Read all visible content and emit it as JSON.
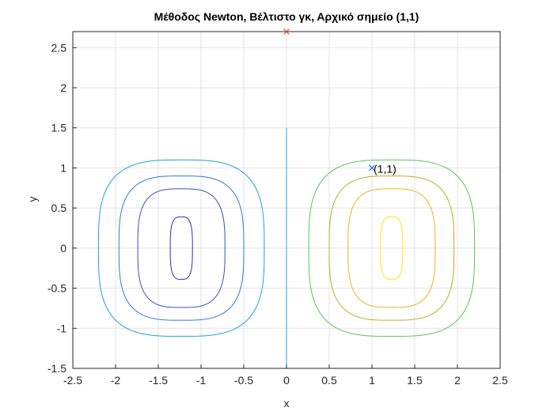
{
  "chart_data": {
    "type": "contour",
    "title": "Μέθοδος Newton, Βέλτιστο γκ, Αρχικό σημείο (1,1)",
    "xlabel": "x",
    "ylabel": "y",
    "xlim": [
      -2.5,
      2.5
    ],
    "ylim": [
      -1.5,
      2.7
    ],
    "xticks": [
      "-2.5",
      "-2",
      "-1.5",
      "-1",
      "-0.5",
      "0",
      "0.5",
      "1",
      "1.5",
      "2",
      "2.5"
    ],
    "yticks": [
      "-1.5",
      "-1",
      "-0.5",
      "0",
      "0.5",
      "1",
      "1.5",
      "2",
      "2.5"
    ],
    "grid": true,
    "contours": [
      {
        "center": [
          -1.23,
          0
        ],
        "half_width": 0.97,
        "half_height": 1.1,
        "color": "#1aa3d8"
      },
      {
        "center": [
          -1.23,
          0
        ],
        "half_width": 0.73,
        "half_height": 0.9,
        "color": "#2d78d8"
      },
      {
        "center": [
          -1.23,
          0
        ],
        "half_width": 0.51,
        "half_height": 0.74,
        "color": "#3b4fc8"
      },
      {
        "center": [
          -1.23,
          0
        ],
        "half_width": 0.13,
        "half_height": 0.39,
        "color": "#3b2ea6"
      },
      {
        "center": [
          1.23,
          0
        ],
        "half_width": 0.97,
        "half_height": 1.1,
        "color": "#5cc25a"
      },
      {
        "center": [
          1.23,
          0
        ],
        "half_width": 0.73,
        "half_height": 0.9,
        "color": "#b9b020"
      },
      {
        "center": [
          1.23,
          0
        ],
        "half_width": 0.51,
        "half_height": 0.74,
        "color": "#e3b81e"
      },
      {
        "center": [
          1.23,
          0
        ],
        "half_width": 0.13,
        "half_height": 0.39,
        "color": "#f5e619"
      }
    ],
    "path_line": {
      "x": [
        0,
        0
      ],
      "y": [
        -1.5,
        1.5
      ],
      "color": "#1aa3d8"
    },
    "markers": [
      {
        "x": 1,
        "y": 1,
        "symbol": "x",
        "color": "#1f6fd0"
      },
      {
        "x": 0,
        "y": 2.7,
        "symbol": "x",
        "color": "#d9531e"
      }
    ],
    "annotations": [
      {
        "text": "(1,1)",
        "x": 1,
        "y": 1
      }
    ]
  }
}
